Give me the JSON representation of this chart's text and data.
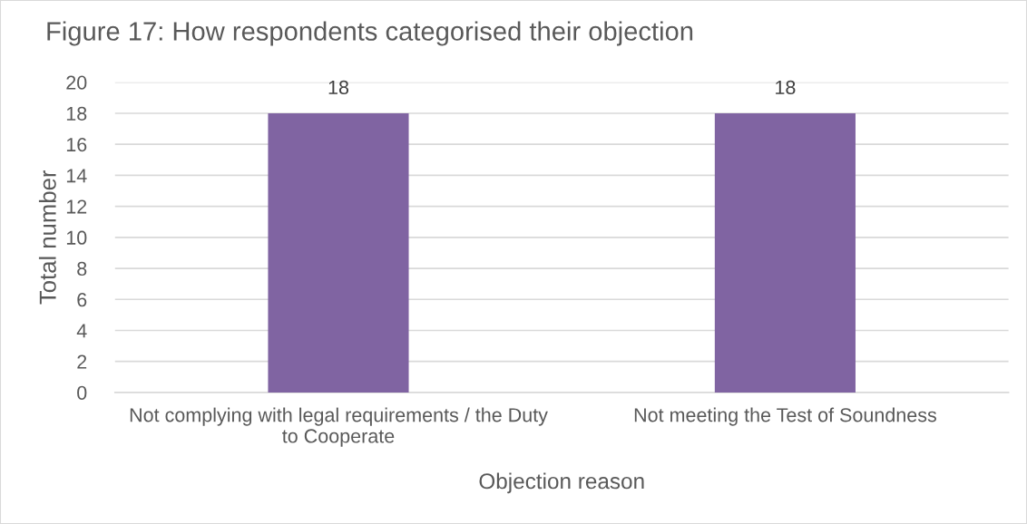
{
  "chart_data": {
    "type": "bar",
    "title": "Figure 17: How respondents categorised their objection",
    "xlabel": "Objection reason",
    "ylabel": "Total number",
    "categories": [
      "Not complying with legal requirements / the Duty\nto Cooperate",
      "Not meeting the Test of Soundness"
    ],
    "values": [
      18,
      18
    ],
    "color": "#8064a2",
    "ylim": [
      0,
      20
    ],
    "yticks": [
      0,
      2,
      4,
      6,
      8,
      10,
      12,
      14,
      16,
      18,
      20
    ],
    "grid": "y",
    "data_labels": true
  }
}
